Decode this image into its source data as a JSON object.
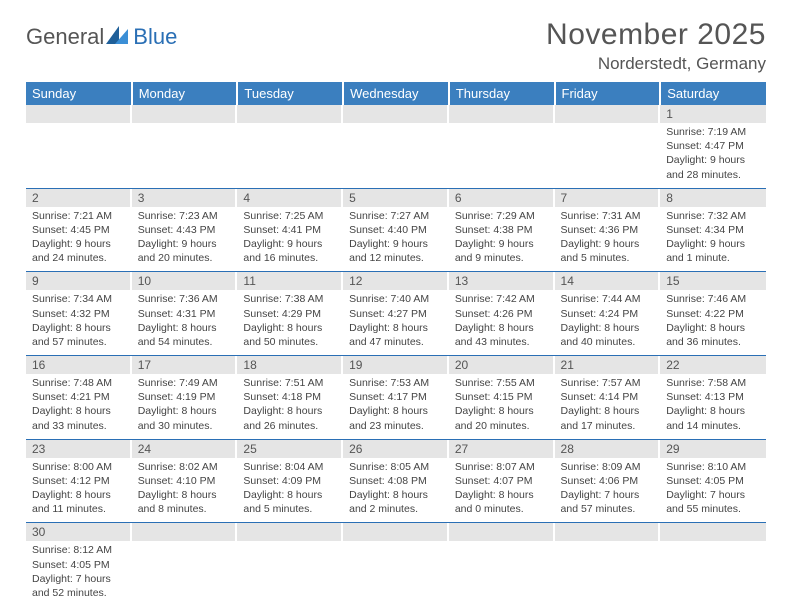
{
  "brand": {
    "general": "General",
    "blue": "Blue"
  },
  "title": "November 2025",
  "location": "Norderstedt, Germany",
  "colors": {
    "header_bg": "#3b7fbf",
    "header_text": "#ffffff",
    "daynum_bg": "#e5e5e5",
    "text": "#555555",
    "rule": "#2a6fb5"
  },
  "days_of_week": [
    "Sunday",
    "Monday",
    "Tuesday",
    "Wednesday",
    "Thursday",
    "Friday",
    "Saturday"
  ],
  "weeks": [
    [
      null,
      null,
      null,
      null,
      null,
      null,
      {
        "n": "1",
        "sunrise": "Sunrise: 7:19 AM",
        "sunset": "Sunset: 4:47 PM",
        "daylight": "Daylight: 9 hours and 28 minutes."
      }
    ],
    [
      {
        "n": "2",
        "sunrise": "Sunrise: 7:21 AM",
        "sunset": "Sunset: 4:45 PM",
        "daylight": "Daylight: 9 hours and 24 minutes."
      },
      {
        "n": "3",
        "sunrise": "Sunrise: 7:23 AM",
        "sunset": "Sunset: 4:43 PM",
        "daylight": "Daylight: 9 hours and 20 minutes."
      },
      {
        "n": "4",
        "sunrise": "Sunrise: 7:25 AM",
        "sunset": "Sunset: 4:41 PM",
        "daylight": "Daylight: 9 hours and 16 minutes."
      },
      {
        "n": "5",
        "sunrise": "Sunrise: 7:27 AM",
        "sunset": "Sunset: 4:40 PM",
        "daylight": "Daylight: 9 hours and 12 minutes."
      },
      {
        "n": "6",
        "sunrise": "Sunrise: 7:29 AM",
        "sunset": "Sunset: 4:38 PM",
        "daylight": "Daylight: 9 hours and 9 minutes."
      },
      {
        "n": "7",
        "sunrise": "Sunrise: 7:31 AM",
        "sunset": "Sunset: 4:36 PM",
        "daylight": "Daylight: 9 hours and 5 minutes."
      },
      {
        "n": "8",
        "sunrise": "Sunrise: 7:32 AM",
        "sunset": "Sunset: 4:34 PM",
        "daylight": "Daylight: 9 hours and 1 minute."
      }
    ],
    [
      {
        "n": "9",
        "sunrise": "Sunrise: 7:34 AM",
        "sunset": "Sunset: 4:32 PM",
        "daylight": "Daylight: 8 hours and 57 minutes."
      },
      {
        "n": "10",
        "sunrise": "Sunrise: 7:36 AM",
        "sunset": "Sunset: 4:31 PM",
        "daylight": "Daylight: 8 hours and 54 minutes."
      },
      {
        "n": "11",
        "sunrise": "Sunrise: 7:38 AM",
        "sunset": "Sunset: 4:29 PM",
        "daylight": "Daylight: 8 hours and 50 minutes."
      },
      {
        "n": "12",
        "sunrise": "Sunrise: 7:40 AM",
        "sunset": "Sunset: 4:27 PM",
        "daylight": "Daylight: 8 hours and 47 minutes."
      },
      {
        "n": "13",
        "sunrise": "Sunrise: 7:42 AM",
        "sunset": "Sunset: 4:26 PM",
        "daylight": "Daylight: 8 hours and 43 minutes."
      },
      {
        "n": "14",
        "sunrise": "Sunrise: 7:44 AM",
        "sunset": "Sunset: 4:24 PM",
        "daylight": "Daylight: 8 hours and 40 minutes."
      },
      {
        "n": "15",
        "sunrise": "Sunrise: 7:46 AM",
        "sunset": "Sunset: 4:22 PM",
        "daylight": "Daylight: 8 hours and 36 minutes."
      }
    ],
    [
      {
        "n": "16",
        "sunrise": "Sunrise: 7:48 AM",
        "sunset": "Sunset: 4:21 PM",
        "daylight": "Daylight: 8 hours and 33 minutes."
      },
      {
        "n": "17",
        "sunrise": "Sunrise: 7:49 AM",
        "sunset": "Sunset: 4:19 PM",
        "daylight": "Daylight: 8 hours and 30 minutes."
      },
      {
        "n": "18",
        "sunrise": "Sunrise: 7:51 AM",
        "sunset": "Sunset: 4:18 PM",
        "daylight": "Daylight: 8 hours and 26 minutes."
      },
      {
        "n": "19",
        "sunrise": "Sunrise: 7:53 AM",
        "sunset": "Sunset: 4:17 PM",
        "daylight": "Daylight: 8 hours and 23 minutes."
      },
      {
        "n": "20",
        "sunrise": "Sunrise: 7:55 AM",
        "sunset": "Sunset: 4:15 PM",
        "daylight": "Daylight: 8 hours and 20 minutes."
      },
      {
        "n": "21",
        "sunrise": "Sunrise: 7:57 AM",
        "sunset": "Sunset: 4:14 PM",
        "daylight": "Daylight: 8 hours and 17 minutes."
      },
      {
        "n": "22",
        "sunrise": "Sunrise: 7:58 AM",
        "sunset": "Sunset: 4:13 PM",
        "daylight": "Daylight: 8 hours and 14 minutes."
      }
    ],
    [
      {
        "n": "23",
        "sunrise": "Sunrise: 8:00 AM",
        "sunset": "Sunset: 4:12 PM",
        "daylight": "Daylight: 8 hours and 11 minutes."
      },
      {
        "n": "24",
        "sunrise": "Sunrise: 8:02 AM",
        "sunset": "Sunset: 4:10 PM",
        "daylight": "Daylight: 8 hours and 8 minutes."
      },
      {
        "n": "25",
        "sunrise": "Sunrise: 8:04 AM",
        "sunset": "Sunset: 4:09 PM",
        "daylight": "Daylight: 8 hours and 5 minutes."
      },
      {
        "n": "26",
        "sunrise": "Sunrise: 8:05 AM",
        "sunset": "Sunset: 4:08 PM",
        "daylight": "Daylight: 8 hours and 2 minutes."
      },
      {
        "n": "27",
        "sunrise": "Sunrise: 8:07 AM",
        "sunset": "Sunset: 4:07 PM",
        "daylight": "Daylight: 8 hours and 0 minutes."
      },
      {
        "n": "28",
        "sunrise": "Sunrise: 8:09 AM",
        "sunset": "Sunset: 4:06 PM",
        "daylight": "Daylight: 7 hours and 57 minutes."
      },
      {
        "n": "29",
        "sunrise": "Sunrise: 8:10 AM",
        "sunset": "Sunset: 4:05 PM",
        "daylight": "Daylight: 7 hours and 55 minutes."
      }
    ],
    [
      {
        "n": "30",
        "sunrise": "Sunrise: 8:12 AM",
        "sunset": "Sunset: 4:05 PM",
        "daylight": "Daylight: 7 hours and 52 minutes."
      },
      null,
      null,
      null,
      null,
      null,
      null
    ]
  ]
}
